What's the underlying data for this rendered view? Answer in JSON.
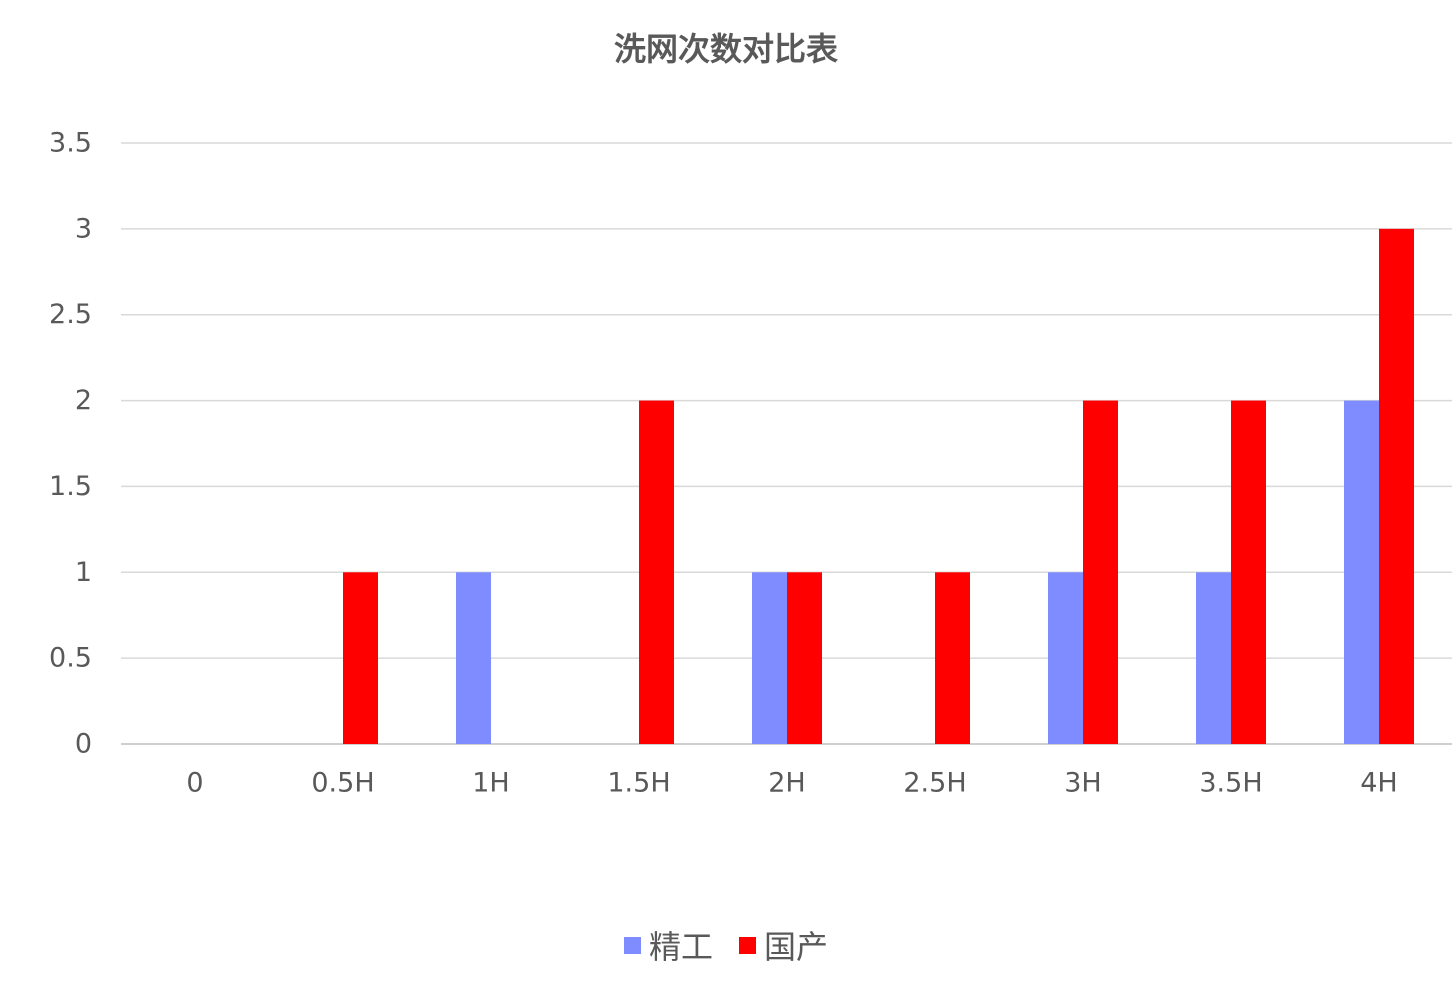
{
  "chart_data": {
    "type": "bar",
    "title": "洗网次数对比表",
    "xlabel": "",
    "ylabel": "",
    "categories": [
      "0",
      "0.5H",
      "1H",
      "1.5H",
      "2H",
      "2.5H",
      "3H",
      "3.5H",
      "4H"
    ],
    "series": [
      {
        "name": "精工",
        "color": "#7f8cff",
        "values": [
          0,
          0,
          1,
          0,
          1,
          0,
          1,
          1,
          2
        ]
      },
      {
        "name": "国产",
        "color": "#ff0000",
        "values": [
          0,
          1,
          0,
          2,
          1,
          1,
          2,
          2,
          3
        ]
      }
    ],
    "ylim": [
      0,
      3.5
    ],
    "yticks": [
      "0",
      "0.5",
      "1",
      "1.5",
      "2",
      "2.5",
      "3",
      "3.5"
    ],
    "grid": true,
    "legend_position": "bottom"
  }
}
